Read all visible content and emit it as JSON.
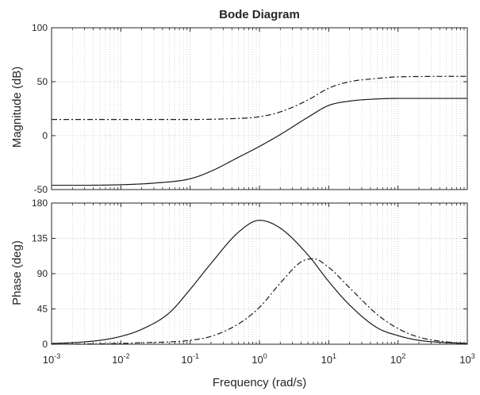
{
  "chart_data": {
    "type": "line",
    "title": "Bode Diagram",
    "xlabel": "Frequency  (rad/s)",
    "xscale": "log",
    "xlim": [
      0.001,
      1000
    ],
    "x_ticks": [
      {
        "base": "10",
        "exp": "-3"
      },
      {
        "base": "10",
        "exp": "-2"
      },
      {
        "base": "10",
        "exp": "-1"
      },
      {
        "base": "10",
        "exp": "0"
      },
      {
        "base": "10",
        "exp": "1"
      },
      {
        "base": "10",
        "exp": "2"
      },
      {
        "base": "10",
        "exp": "3"
      }
    ],
    "grid": true,
    "subplots": [
      {
        "ylabel": "Magnitude (dB)",
        "ylim": [
          -50,
          100
        ],
        "yticks": [
          -50,
          0,
          50,
          100
        ],
        "series": [
          {
            "style": "solid",
            "x": [
              0.001,
              0.003,
              0.01,
              0.03,
              0.1,
              0.2,
              0.5,
              1,
              2,
              5,
              10,
              20,
              50,
              100,
              1000
            ],
            "y": [
              -46,
              -46,
              -45.5,
              -44,
              -40,
              -33,
              -20,
              -10,
              1,
              17,
              28,
              32,
              34,
              34.5,
              34.5
            ]
          },
          {
            "style": "dashdot",
            "x": [
              0.001,
              0.01,
              0.1,
              0.3,
              1,
              2,
              5,
              10,
              20,
              50,
              100,
              1000
            ],
            "y": [
              15,
              15,
              15,
              15.5,
              17.5,
              22,
              33,
              44,
              50,
              53,
              54.5,
              55
            ]
          }
        ]
      },
      {
        "ylabel": "Phase (deg)",
        "ylim": [
          0,
          180
        ],
        "yticks": [
          0,
          45,
          90,
          135,
          180
        ],
        "series": [
          {
            "style": "solid",
            "x": [
              0.001,
              0.002,
              0.005,
              0.01,
              0.02,
              0.05,
              0.1,
              0.2,
              0.5,
              1,
              2,
              5,
              10,
              20,
              50,
              100,
              200,
              500,
              1000
            ],
            "y": [
              1,
              2,
              5,
              10,
              19,
              40,
              70,
              103,
              143,
              158,
              148,
              114,
              80,
              50,
              21,
              11,
              5,
              2,
              1
            ]
          },
          {
            "style": "dashdot",
            "x": [
              0.001,
              0.01,
              0.02,
              0.05,
              0.1,
              0.2,
              0.5,
              1,
              2,
              4,
              6,
              10,
              20,
              50,
              100,
              200,
              500,
              1000
            ],
            "y": [
              0,
              1,
              2,
              3,
              5,
              10,
              26,
              47,
              78,
              105,
              109,
              98,
              72,
              38,
              20,
              9,
              3,
              1
            ]
          }
        ]
      }
    ]
  }
}
